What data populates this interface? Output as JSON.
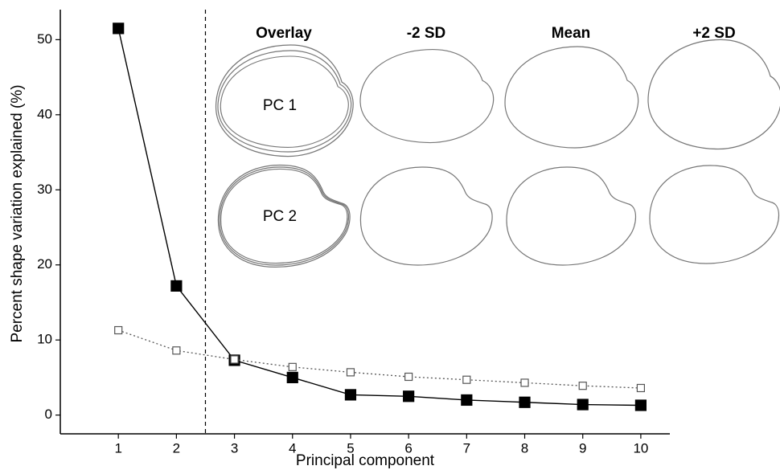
{
  "chart_data": {
    "type": "line",
    "x_label": "Principal component",
    "y_label": "Percent shape variation explained (%)",
    "x": [
      1,
      2,
      3,
      4,
      5,
      6,
      7,
      8,
      9,
      10
    ],
    "series": [
      {
        "color": "#000000",
        "marker": "filled-square",
        "line_style": "solid",
        "values": [
          51.5,
          17.2,
          7.3,
          5.0,
          2.7,
          2.5,
          2.0,
          1.7,
          1.4,
          1.3
        ]
      },
      {
        "color": "#555555",
        "marker": "open-square",
        "line_style": "dotted",
        "values": [
          11.3,
          8.6,
          7.4,
          6.4,
          5.7,
          5.1,
          4.7,
          4.3,
          3.9,
          3.6
        ]
      }
    ],
    "xlim": [
      0,
      10.5
    ],
    "ylim": [
      -2.5,
      54
    ],
    "xticks": [
      1,
      2,
      3,
      4,
      5,
      6,
      7,
      8,
      9,
      10
    ],
    "yticks": [
      0,
      10,
      20,
      30,
      40,
      50
    ],
    "vline": 2.5,
    "panel_titles": [
      "Overlay",
      "-2 SD",
      "Mean",
      "+2 SD"
    ],
    "row_labels": [
      "PC 1",
      "PC 2"
    ]
  }
}
